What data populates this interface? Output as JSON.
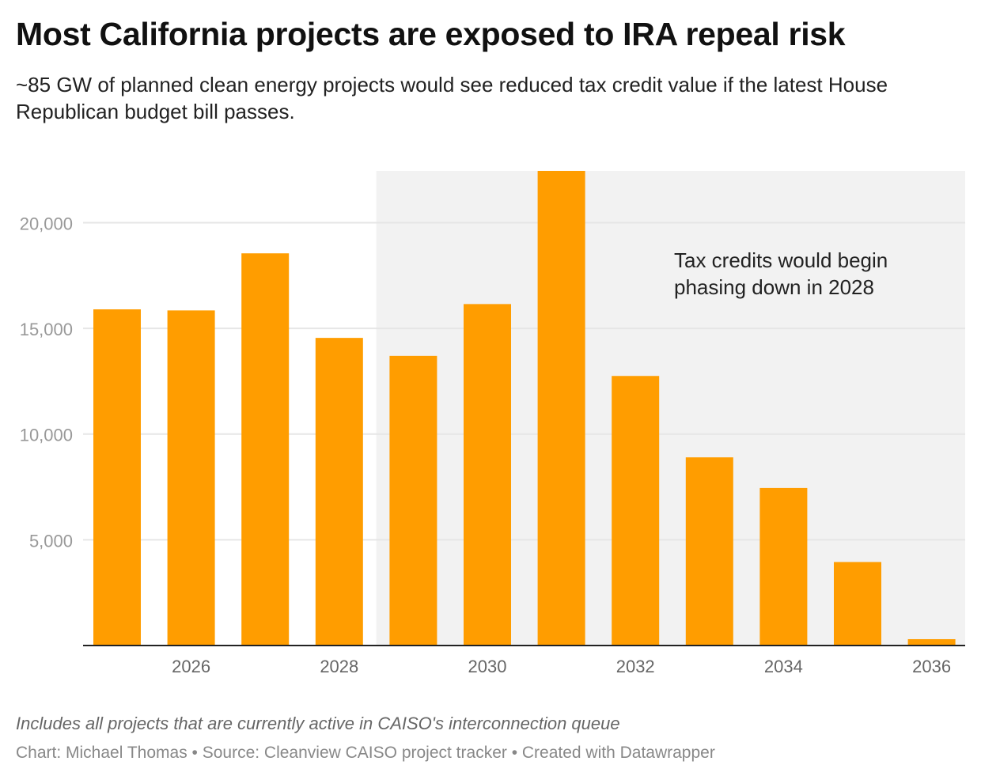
{
  "title": "Most California projects are exposed to IRA repeal risk",
  "subtitle": "~85 GW of planned clean energy projects would see reduced tax credit value if the latest House Republican budget bill passes.",
  "note": "Includes all projects that are currently active in CAISO's interconnection queue",
  "byline": "Chart: Michael Thomas • Source: Cleanview CAISO project tracker • Created with Datawrapper",
  "colors": {
    "bar": "#ff9d00",
    "shade": "#f2f2f2",
    "grid": "#e6e6e6"
  },
  "chart_data": {
    "type": "bar",
    "title": "Most California projects are exposed to IRA repeal risk",
    "xlabel": "",
    "ylabel": "",
    "categories": [
      "2025",
      "2026",
      "2027",
      "2028",
      "2029",
      "2030",
      "2031",
      "2032",
      "2033",
      "2034",
      "2035",
      "2036"
    ],
    "values": [
      15900,
      15850,
      18550,
      14550,
      13700,
      16150,
      22450,
      12750,
      8900,
      7450,
      3950,
      300
    ],
    "ylim": [
      0,
      22450
    ],
    "yticks": [
      5000,
      10000,
      15000,
      20000
    ],
    "ytick_labels": [
      "5,000",
      "10,000",
      "15,000",
      "20,000"
    ],
    "xtick_labels": [
      "2026",
      "2028",
      "2030",
      "2032",
      "2034",
      "2036"
    ],
    "shaded_range": [
      "2028.5",
      "2036"
    ],
    "annotation": [
      "Tax credits would begin",
      "phasing down in 2028"
    ],
    "grid": true
  }
}
